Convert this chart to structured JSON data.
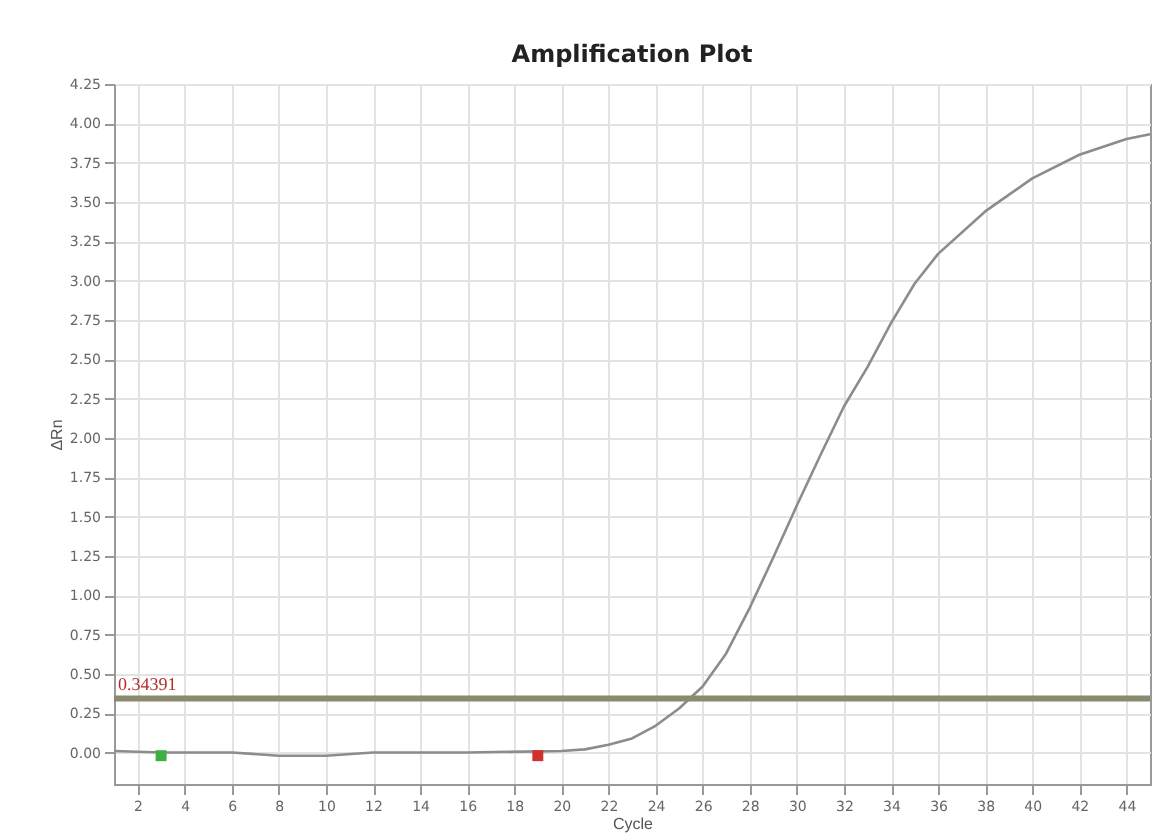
{
  "chart_data": {
    "type": "line",
    "title": "Amplification Plot",
    "xlabel": "Cycle",
    "ylabel": "ΔRn",
    "xlim": [
      1,
      45
    ],
    "xticks": [
      2,
      4,
      6,
      8,
      10,
      12,
      14,
      16,
      18,
      20,
      22,
      24,
      26,
      28,
      30,
      32,
      34,
      36,
      38,
      40,
      42,
      44
    ],
    "ylim": [
      -0.2,
      4.25
    ],
    "yticks": [
      {
        "value": 0,
        "label": "0.00"
      },
      {
        "value": 0.25,
        "label": "0.25"
      },
      {
        "value": 0.5,
        "label": "0.50"
      },
      {
        "value": 0.75,
        "label": "0.75"
      },
      {
        "value": 1,
        "label": "1.00"
      },
      {
        "value": 1.25,
        "label": "1.25"
      },
      {
        "value": 1.5,
        "label": "1.50"
      },
      {
        "value": 1.75,
        "label": "1.75"
      },
      {
        "value": 2,
        "label": "2.00"
      },
      {
        "value": 2.25,
        "label": "2.25"
      },
      {
        "value": 2.5,
        "label": "2.50"
      },
      {
        "value": 2.75,
        "label": "2.75"
      },
      {
        "value": 3,
        "label": "3.00"
      },
      {
        "value": 3.25,
        "label": "3.25"
      },
      {
        "value": 3.5,
        "label": "3.50"
      },
      {
        "value": 3.75,
        "label": "3.75"
      },
      {
        "value": 4,
        "label": "4.00"
      },
      {
        "value": 4.25,
        "label": "4.25"
      }
    ],
    "grid": true,
    "series": [
      {
        "color": "#8c8c8c",
        "x": [
          1,
          3,
          6,
          8,
          10,
          12,
          16,
          20,
          21,
          22,
          23,
          24,
          25,
          26,
          27,
          28,
          29,
          30,
          31,
          32,
          33,
          34,
          35,
          36,
          38,
          40,
          42,
          44,
          45
        ],
        "values": [
          0.01,
          0.0,
          0.0,
          -0.02,
          -0.02,
          0.0,
          0.0,
          0.01,
          0.02,
          0.05,
          0.09,
          0.17,
          0.28,
          0.42,
          0.63,
          0.92,
          1.24,
          1.57,
          1.89,
          2.2,
          2.45,
          2.73,
          2.98,
          3.17,
          3.44,
          3.65,
          3.8,
          3.9,
          3.93
        ]
      },
      {
        "type": "scatter",
        "marker": "square",
        "color": "#3cb043",
        "x": [
          3
        ],
        "values": [
          -0.02
        ]
      },
      {
        "type": "scatter",
        "marker": "square",
        "color": "#d0312d",
        "x": [
          19
        ],
        "values": [
          -0.02
        ]
      }
    ],
    "ref_lines": [
      {
        "axis": "y",
        "value": 0.34391,
        "label": "0.34391",
        "color": "#8a8a6e"
      }
    ]
  }
}
